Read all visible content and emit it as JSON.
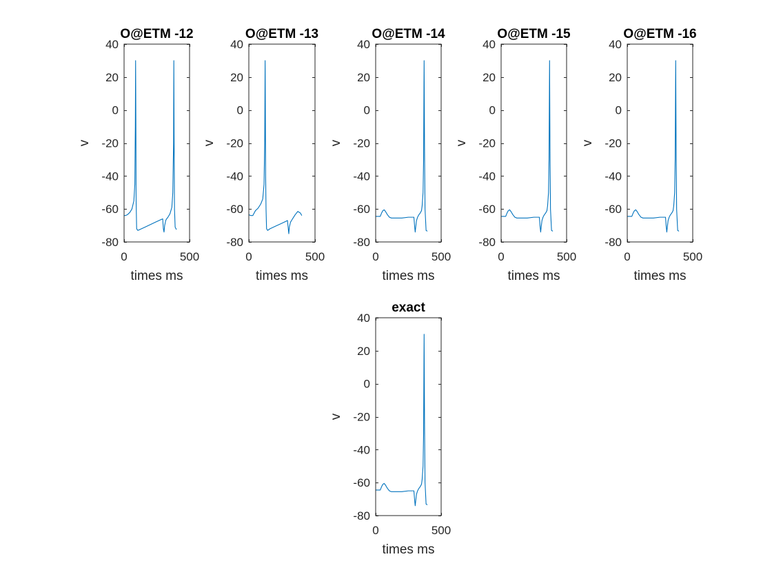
{
  "figure": {
    "background": "#ffffff",
    "line_color": "#0072bd",
    "axes_color": "#262626"
  },
  "chart_data": [
    {
      "type": "line",
      "title": "O@ETM -12",
      "xlabel": "times ms",
      "ylabel": "v",
      "xlim": [
        0,
        500
      ],
      "ylim": [
        -80,
        40
      ],
      "xticks": [
        0,
        500
      ],
      "yticks": [
        -80,
        -60,
        -40,
        -20,
        0,
        20,
        40
      ],
      "series": [
        {
          "x": [
            0,
            10,
            25,
            45,
            60,
            75,
            82,
            86,
            88,
            90,
            92,
            96,
            105,
            120,
            160,
            200,
            240,
            280,
            295,
            300,
            305,
            310,
            318,
            325,
            335,
            350,
            365,
            372,
            378,
            380,
            382,
            385,
            390,
            400
          ],
          "y": [
            -64,
            -64,
            -63.5,
            -62,
            -60,
            -55,
            -45,
            -10,
            30,
            -5,
            -55,
            -72,
            -73,
            -72.5,
            -71,
            -69.5,
            -68,
            -66.5,
            -66,
            -72,
            -74,
            -70,
            -67,
            -66,
            -65,
            -63,
            -59,
            -50,
            -20,
            30,
            -15,
            -60,
            -71,
            -72.5
          ]
        }
      ]
    },
    {
      "type": "line",
      "title": "O@ETM -13",
      "xlabel": "times ms",
      "ylabel": "v",
      "xlim": [
        0,
        500
      ],
      "ylim": [
        -80,
        40
      ],
      "xticks": [
        0,
        500
      ],
      "yticks": [
        -80,
        -60,
        -40,
        -20,
        0,
        20,
        40
      ],
      "series": [
        {
          "x": [
            0,
            15,
            30,
            50,
            70,
            90,
            105,
            115,
            120,
            123,
            125,
            127,
            130,
            134,
            142,
            160,
            200,
            240,
            280,
            292,
            298,
            302,
            306,
            315,
            330,
            350,
            370,
            390,
            400
          ],
          "y": [
            -63.5,
            -64,
            -64,
            -61,
            -59.5,
            -57,
            -54,
            -45,
            -20,
            30,
            0,
            -40,
            -60,
            -72,
            -73,
            -72,
            -70.5,
            -69,
            -67.5,
            -67,
            -72,
            -75,
            -71,
            -68,
            -66,
            -63.5,
            -61.5,
            -62.5,
            -64
          ]
        }
      ]
    },
    {
      "type": "line",
      "title": "O@ETM -14",
      "xlabel": "times ms",
      "ylabel": "v",
      "xlim": [
        0,
        500
      ],
      "ylim": [
        -80,
        40
      ],
      "xticks": [
        0,
        500
      ],
      "yticks": [
        -80,
        -60,
        -40,
        -20,
        0,
        20,
        40
      ],
      "series": [
        {
          "x": [
            0,
            20,
            35,
            45,
            55,
            65,
            75,
            90,
            105,
            120,
            150,
            200,
            250,
            280,
            292,
            298,
            302,
            306,
            312,
            320,
            330,
            340,
            350,
            355,
            362,
            366,
            368,
            370,
            373,
            377,
            385,
            395
          ],
          "y": [
            -64.5,
            -64.5,
            -64.5,
            -62.5,
            -61,
            -60.5,
            -61.5,
            -63.5,
            -65,
            -65.5,
            -65.5,
            -65.5,
            -65,
            -65,
            -65,
            -71,
            -74,
            -71,
            -67,
            -65,
            -63.5,
            -62.5,
            -61,
            -58,
            -50,
            -30,
            0,
            30,
            -20,
            -60,
            -73,
            -73.5
          ]
        }
      ]
    },
    {
      "type": "line",
      "title": "O@ETM -15",
      "xlabel": "times ms",
      "ylabel": "v",
      "xlim": [
        0,
        500
      ],
      "ylim": [
        -80,
        40
      ],
      "xticks": [
        0,
        500
      ],
      "yticks": [
        -80,
        -60,
        -40,
        -20,
        0,
        20,
        40
      ],
      "series": [
        {
          "x": [
            0,
            20,
            35,
            45,
            55,
            65,
            75,
            90,
            105,
            120,
            150,
            200,
            250,
            280,
            292,
            298,
            302,
            306,
            312,
            320,
            330,
            340,
            350,
            355,
            362,
            366,
            368,
            370,
            373,
            377,
            385,
            395
          ],
          "y": [
            -64.5,
            -64.5,
            -64.5,
            -62.5,
            -61,
            -60.5,
            -61.5,
            -63.5,
            -65,
            -65.5,
            -65.5,
            -65.5,
            -65,
            -65,
            -65,
            -71,
            -74,
            -71,
            -67,
            -65,
            -63.5,
            -62.5,
            -61,
            -58,
            -50,
            -30,
            0,
            30,
            -20,
            -60,
            -73,
            -73.5
          ]
        }
      ]
    },
    {
      "type": "line",
      "title": "O@ETM -16",
      "xlabel": "times ms",
      "ylabel": "v",
      "xlim": [
        0,
        500
      ],
      "ylim": [
        -80,
        40
      ],
      "xticks": [
        0,
        500
      ],
      "yticks": [
        -80,
        -60,
        -40,
        -20,
        0,
        20,
        40
      ],
      "series": [
        {
          "x": [
            0,
            20,
            35,
            45,
            55,
            65,
            75,
            90,
            105,
            120,
            150,
            200,
            250,
            280,
            292,
            298,
            302,
            306,
            312,
            320,
            330,
            340,
            350,
            355,
            362,
            366,
            368,
            370,
            373,
            377,
            385,
            395
          ],
          "y": [
            -64.5,
            -64.5,
            -64.5,
            -62.5,
            -61,
            -60.5,
            -61.5,
            -63.5,
            -65,
            -65.5,
            -65.5,
            -65.5,
            -65,
            -65,
            -65,
            -71,
            -74,
            -71,
            -67,
            -65,
            -63.5,
            -62.5,
            -61,
            -58,
            -50,
            -30,
            0,
            30,
            -20,
            -60,
            -73,
            -73.5
          ]
        }
      ]
    },
    {
      "type": "line",
      "title": "exact",
      "xlabel": "times ms",
      "ylabel": "v",
      "xlim": [
        0,
        500
      ],
      "ylim": [
        -80,
        40
      ],
      "xticks": [
        0,
        500
      ],
      "yticks": [
        -80,
        -60,
        -40,
        -20,
        0,
        20,
        40
      ],
      "series": [
        {
          "x": [
            0,
            20,
            35,
            45,
            55,
            65,
            75,
            90,
            105,
            120,
            150,
            200,
            250,
            280,
            292,
            298,
            302,
            306,
            312,
            320,
            330,
            340,
            350,
            355,
            362,
            366,
            368,
            370,
            373,
            377,
            385,
            395
          ],
          "y": [
            -64.5,
            -64.5,
            -64.5,
            -62.5,
            -61,
            -60.5,
            -61.5,
            -63.5,
            -65,
            -65.5,
            -65.5,
            -65.5,
            -65,
            -65,
            -65,
            -71,
            -74,
            -71,
            -67,
            -65,
            -63.5,
            -62.5,
            -61,
            -58,
            -50,
            -30,
            0,
            30,
            -20,
            -60,
            -73,
            -73.5
          ]
        }
      ]
    }
  ]
}
